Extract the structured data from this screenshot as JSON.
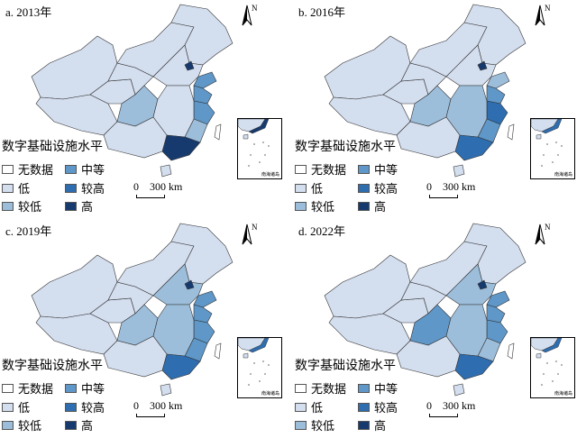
{
  "colors": {
    "none": "#ffffff",
    "low": "#d3deef",
    "lower": "#9dbedb",
    "mid": "#5f97c8",
    "higher": "#2e6daf",
    "high": "#173a6e"
  },
  "legend": {
    "title": "数字基础设施水平",
    "items": [
      {
        "key": "none",
        "label": "无数据"
      },
      {
        "key": "low",
        "label": "低"
      },
      {
        "key": "lower",
        "label": "较低"
      },
      {
        "key": "mid",
        "label": "中等"
      },
      {
        "key": "higher",
        "label": "较高"
      },
      {
        "key": "high",
        "label": "高"
      }
    ]
  },
  "scale_label": "0    300 km",
  "north_label": "N",
  "inset_label": "南海诸岛",
  "panels": [
    {
      "title": "a. 2013年",
      "levels": {
        "xinjiang": "low",
        "tibet": "low",
        "qinghai": "low",
        "gansu": "low",
        "nmg": "low",
        "northeast": "low",
        "beijing": "high",
        "north": "low",
        "shandong": "mid",
        "jiangsu": "mid",
        "zhejiang": "mid",
        "fujian": "lower",
        "sichuan": "lower",
        "central": "low",
        "guangdong": "high",
        "southwest": "low",
        "hainan": "low",
        "taiwan": "none"
      }
    },
    {
      "title": "b. 2016年",
      "levels": {
        "xinjiang": "low",
        "tibet": "low",
        "qinghai": "low",
        "gansu": "low",
        "nmg": "low",
        "northeast": "low",
        "beijing": "high",
        "north": "low",
        "shandong": "lower",
        "jiangsu": "mid",
        "zhejiang": "higher",
        "fujian": "mid",
        "sichuan": "lower",
        "central": "lower",
        "guangdong": "higher",
        "southwest": "low",
        "hainan": "low",
        "taiwan": "none"
      }
    },
    {
      "title": "c. 2019年",
      "levels": {
        "xinjiang": "low",
        "tibet": "low",
        "qinghai": "low",
        "gansu": "low",
        "nmg": "low",
        "northeast": "low",
        "beijing": "high",
        "north": "lower",
        "shandong": "mid",
        "jiangsu": "mid",
        "zhejiang": "mid",
        "fujian": "mid",
        "sichuan": "lower",
        "central": "lower",
        "guangdong": "higher",
        "southwest": "low",
        "hainan": "low",
        "taiwan": "none"
      }
    },
    {
      "title": "d. 2022年",
      "levels": {
        "xinjiang": "low",
        "tibet": "low",
        "qinghai": "low",
        "gansu": "low",
        "nmg": "low",
        "northeast": "low",
        "beijing": "high",
        "north": "lower",
        "shandong": "mid",
        "jiangsu": "mid",
        "zhejiang": "mid",
        "fujian": "lower",
        "sichuan": "mid",
        "central": "lower",
        "guangdong": "higher",
        "southwest": "low",
        "hainan": "low",
        "taiwan": "none"
      }
    }
  ]
}
